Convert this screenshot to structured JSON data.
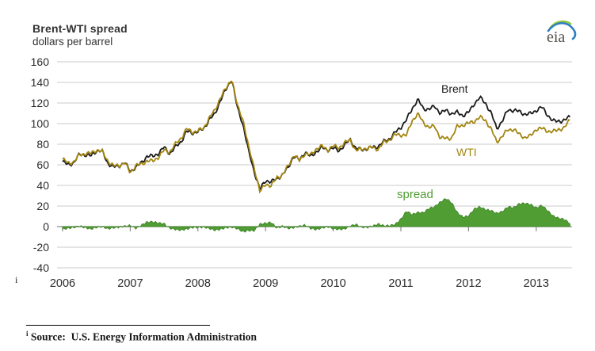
{
  "header": {
    "title": "Brent-WTI spread",
    "subtitle": "dollars per barrel",
    "logo_text": "eia"
  },
  "annotations": {
    "brent_label": "Brent",
    "wti_label": "WTI",
    "spread_label": "spread"
  },
  "footnote": {
    "marker": "i",
    "source_label": "Source:",
    "source_text": "U.S. Energy Information Administration"
  },
  "colors": {
    "brent": "#1a1a1a",
    "wti": "#a3850f",
    "spread_fill": "#4f9d33",
    "spread_edge": "#3f8328",
    "gridline": "#cbcbcb",
    "axis": "#8a8a8a",
    "tick_text": "#2b2b2b",
    "logo_green": "#8dc63f",
    "logo_blue": "#2e7fc2"
  },
  "chart_data": {
    "type": "line",
    "title": "Brent-WTI spread",
    "ylabel": "dollars per barrel",
    "ylim": [
      -40,
      160
    ],
    "y_ticks": [
      160,
      140,
      120,
      100,
      80,
      60,
      40,
      20,
      0,
      -20,
      -40
    ],
    "x_ticks": [
      "2006",
      "2007",
      "2008",
      "2009",
      "2010",
      "2011",
      "2012",
      "2013"
    ],
    "x_monthly_start": "2006-01",
    "x_monthly_end": "2013-07",
    "grid": true,
    "legend_position": "inline-annotations",
    "series": [
      {
        "name": "Brent",
        "type": "line",
        "values": [
          63.0,
          60.1,
          62.1,
          70.3,
          69.8,
          68.6,
          73.7,
          73.2,
          61.7,
          57.8,
          58.9,
          62.3,
          53.7,
          57.6,
          62.1,
          68.5,
          68.2,
          71.1,
          77.0,
          70.8,
          77.2,
          82.3,
          92.4,
          90.9,
          92.2,
          95.0,
          103.7,
          109.1,
          122.8,
          133.0,
          143.5,
          115.0,
          99.1,
          72.8,
          53.2,
          36.0,
          44.9,
          43.3,
          46.5,
          50.2,
          57.3,
          68.6,
          64.4,
          72.5,
          67.7,
          72.8,
          76.7,
          74.5,
          76.2,
          73.8,
          78.8,
          84.8,
          75.9,
          74.8,
          75.6,
          77.1,
          77.8,
          82.7,
          85.3,
          91.4,
          96.5,
          103.7,
          114.6,
          123.3,
          114.5,
          114.0,
          116.7,
          110.2,
          112.8,
          109.6,
          110.8,
          107.9,
          110.7,
          119.3,
          125.4,
          119.8,
          110.3,
          95.2,
          102.6,
          113.4,
          112.9,
          111.7,
          109.1,
          109.5,
          112.9,
          116.1,
          108.5,
          102.3,
          102.6,
          102.9,
          107.0
        ]
      },
      {
        "name": "WTI",
        "type": "line",
        "values": [
          65.5,
          61.6,
          62.9,
          69.7,
          70.9,
          71.0,
          74.4,
          73.1,
          63.9,
          58.9,
          59.4,
          62.0,
          52.5,
          59.3,
          60.6,
          64.0,
          63.5,
          67.5,
          74.2,
          72.4,
          79.9,
          85.8,
          94.8,
          91.7,
          93.0,
          95.4,
          105.5,
          112.6,
          125.4,
          134.0,
          144.0,
          117.0,
          104.1,
          76.6,
          57.3,
          33.5,
          41.7,
          39.1,
          48.0,
          49.8,
          59.0,
          69.6,
          64.1,
          71.0,
          69.4,
          75.7,
          78.0,
          74.5,
          78.3,
          76.4,
          81.2,
          84.3,
          73.7,
          75.3,
          76.3,
          76.6,
          75.2,
          81.9,
          84.3,
          89.2,
          89.2,
          88.6,
          102.9,
          109.5,
          100.9,
          96.3,
          97.3,
          86.3,
          85.5,
          86.3,
          97.2,
          98.6,
          100.3,
          102.2,
          106.2,
          103.3,
          94.7,
          82.3,
          87.9,
          94.1,
          94.5,
          89.5,
          86.5,
          87.9,
          94.8,
          95.3,
          92.9,
          92.0,
          94.5,
          95.8,
          104.0
        ]
      },
      {
        "name": "spread",
        "type": "area",
        "derived": "Brent minus WTI"
      }
    ]
  }
}
